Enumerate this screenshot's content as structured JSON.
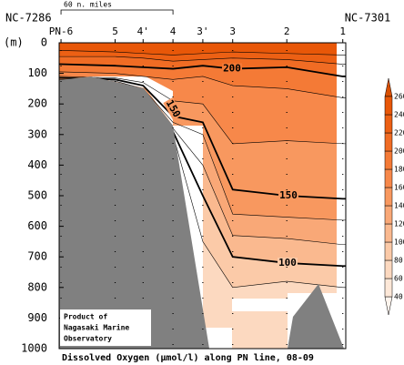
{
  "chart_data": {
    "type": "contour",
    "caption": "Dissolved Oxygen (μmol/l) along PN line, 08-09",
    "y_unit": "(m)",
    "section_ends": [
      "NC-7286",
      "NC-7301"
    ],
    "scale_bar": {
      "value": 60,
      "label": "60 n. miles"
    },
    "credit": [
      "Product of",
      "Nagasaki Marine",
      "Observatory"
    ],
    "xlim": [
      -1,
      152.6
    ],
    "ylim": [
      0,
      1000
    ],
    "y_reversed": true,
    "yticks": [
      0,
      100,
      200,
      300,
      400,
      500,
      600,
      700,
      800,
      900,
      1000
    ],
    "stations": [
      {
        "name": "PN-6",
        "x": 0
      },
      {
        "name": "5",
        "x": 29
      },
      {
        "name": "4'",
        "x": 44
      },
      {
        "name": "4",
        "x": 60
      },
      {
        "name": "3'",
        "x": 76
      },
      {
        "name": "3",
        "x": 92
      },
      {
        "name": "2",
        "x": 121
      },
      {
        "name": "1",
        "x": 151
      }
    ],
    "contours": [
      {
        "level": 240,
        "bold": false,
        "depths": [
          25,
          30,
          35,
          40,
          35,
          30,
          35,
          40
        ]
      },
      {
        "level": 220,
        "bold": false,
        "depths": [
          45,
          45,
          50,
          60,
          55,
          50,
          55,
          70
        ]
      },
      {
        "level": 200,
        "bold": true,
        "depths": [
          70,
          75,
          80,
          85,
          75,
          85,
          80,
          110
        ]
      },
      {
        "level": 180,
        "bold": false,
        "depths": [
          95,
          100,
          110,
          120,
          110,
          140,
          150,
          180
        ]
      },
      {
        "level": 160,
        "bold": false,
        "depths": [
          110,
          115,
          130,
          190,
          200,
          330,
          320,
          330
        ]
      },
      {
        "level": 150,
        "bold": true,
        "depths": [
          115,
          120,
          140,
          240,
          260,
          480,
          500,
          510
        ]
      },
      {
        "level": 140,
        "bold": false,
        "depths": [
          120,
          125,
          150,
          260,
          300,
          560,
          570,
          580
        ]
      },
      {
        "level": 120,
        "bold": false,
        "depths": [
          130,
          130,
          160,
          280,
          400,
          630,
          640,
          660
        ]
      },
      {
        "level": 100,
        "bold": true,
        "depths": [
          140,
          140,
          170,
          290,
          500,
          700,
          720,
          730
        ]
      },
      {
        "level": 80,
        "bold": false,
        "depths": [
          150,
          150,
          180,
          300,
          650,
          800,
          780,
          800
        ]
      }
    ],
    "colorbar": {
      "ticks": [
        40,
        60,
        80,
        100,
        120,
        140,
        160,
        180,
        200,
        220,
        240,
        260
      ],
      "colors": [
        "#fff5ee",
        "#fde8d8",
        "#fcd9c0",
        "#fbcaa8",
        "#fab98f",
        "#f9a877",
        "#f8985f",
        "#f7884a",
        "#f47a36",
        "#f06c24",
        "#ec6014",
        "#e85708",
        "#d94f00"
      ]
    }
  }
}
